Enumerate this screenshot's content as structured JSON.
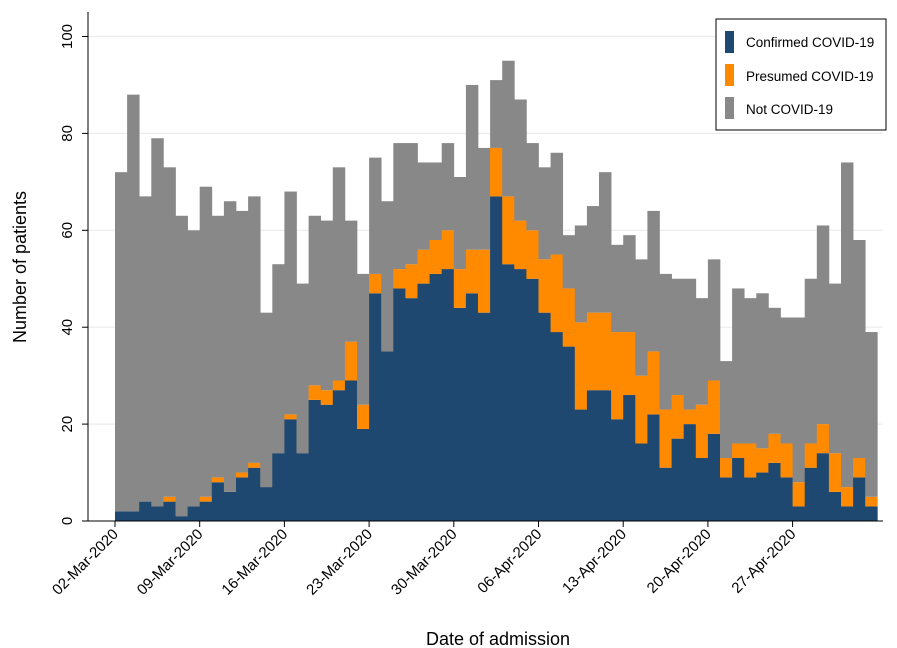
{
  "chart_data": {
    "type": "bar",
    "stacked": true,
    "title": "",
    "xlabel": "Date of admission",
    "ylabel": "Number of patients",
    "ylim": [
      0,
      104
    ],
    "yticks": [
      0,
      20,
      40,
      60,
      80,
      100
    ],
    "grid": "horizontal",
    "legend_position": "top-right",
    "x_start_date": "2020-03-02",
    "day_count": 63,
    "x_tick_labels": [
      "02-Mar-2020",
      "09-Mar-2020",
      "16-Mar-2020",
      "23-Mar-2020",
      "30-Mar-2020",
      "06-Apr-2020",
      "13-Apr-2020",
      "20-Apr-2020",
      "27-Apr-2020"
    ],
    "series": [
      {
        "name": "Confirmed COVID-19",
        "color": "#1f4870",
        "values": [
          2,
          2,
          4,
          3,
          4,
          1,
          3,
          4,
          8,
          6,
          9,
          11,
          7,
          14,
          21,
          14,
          25,
          24,
          27,
          29,
          19,
          47,
          35,
          48,
          46,
          49,
          51,
          52,
          44,
          47,
          43,
          67,
          53,
          52,
          50,
          43,
          39,
          36,
          23,
          27,
          27,
          21,
          26,
          16,
          22,
          11,
          17,
          20,
          13,
          18,
          9,
          13,
          9,
          10,
          12,
          9,
          3,
          11,
          14,
          6,
          3,
          9,
          3
        ]
      },
      {
        "name": "Presumed COVID-19",
        "color": "#ff8a00",
        "values": [
          0,
          0,
          0,
          0,
          1,
          0,
          0,
          1,
          1,
          0,
          1,
          1,
          0,
          0,
          1,
          0,
          3,
          3,
          2,
          8,
          5,
          4,
          0,
          4,
          7,
          7,
          7,
          8,
          8,
          9,
          13,
          10,
          14,
          10,
          10,
          11,
          16,
          12,
          18,
          16,
          16,
          18,
          13,
          14,
          13,
          12,
          9,
          3,
          11,
          11,
          4,
          3,
          7,
          5,
          6,
          7,
          5,
          5,
          6,
          8,
          4,
          4,
          2
        ]
      },
      {
        "name": "Not COVID-19",
        "color": "#888888",
        "values": [
          70,
          86,
          63,
          76,
          68,
          62,
          57,
          64,
          54,
          60,
          54,
          55,
          36,
          39,
          46,
          35,
          35,
          35,
          44,
          25,
          27,
          24,
          31,
          26,
          25,
          18,
          16,
          18,
          19,
          34,
          21,
          14,
          28,
          25,
          18,
          19,
          21,
          11,
          20,
          22,
          29,
          18,
          20,
          24,
          29,
          28,
          24,
          27,
          22,
          25,
          20,
          32,
          30,
          32,
          26,
          26,
          34,
          34,
          41,
          35,
          67,
          45,
          34
        ]
      }
    ]
  }
}
